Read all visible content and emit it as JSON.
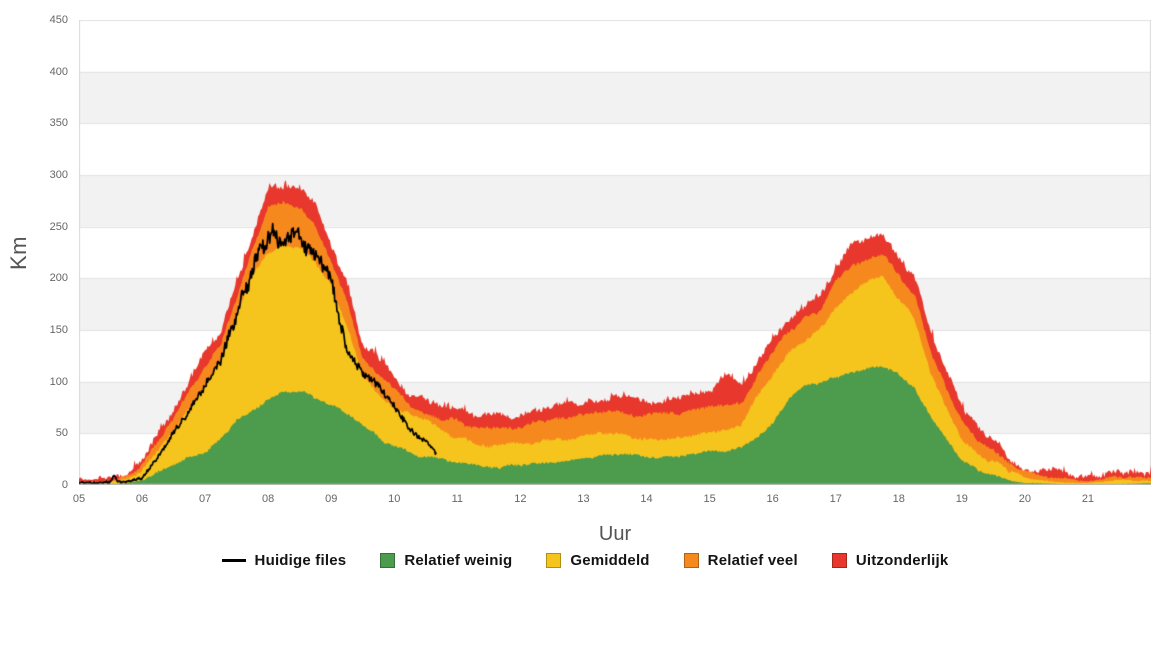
{
  "chart": {
    "ylabel": "Km",
    "xlabel": "Uur",
    "y_axis": {
      "min": 0,
      "max": 450,
      "step": 50,
      "ticks": [
        "0",
        "50",
        "100",
        "150",
        "200",
        "250",
        "300",
        "350",
        "400",
        "450"
      ]
    },
    "x_axis": {
      "start_hour": 5,
      "end_hour": 22,
      "ticks": [
        "05",
        "06",
        "07",
        "08",
        "09",
        "10",
        "11",
        "12",
        "13",
        "14",
        "15",
        "16",
        "17",
        "18",
        "19",
        "20",
        "21"
      ]
    },
    "legend": [
      {
        "label": "Huidige files",
        "type": "line",
        "color": "#000000"
      },
      {
        "label": "Relatief weinig",
        "type": "area",
        "color": "#4d9b4d"
      },
      {
        "label": "Gemiddeld",
        "type": "area",
        "color": "#f5c51d"
      },
      {
        "label": "Relatief veel",
        "type": "area",
        "color": "#f6891e"
      },
      {
        "label": "Uitzonderlijk",
        "type": "area",
        "color": "#e8372c"
      }
    ],
    "colors": {
      "plot_band": "#f2f2f2",
      "grid_line": "#e2e2e2",
      "plot_border": "#d9d9d9",
      "axis_text": "#666666"
    }
  },
  "chart_data": {
    "type": "area",
    "stacked": true,
    "title": "",
    "xlabel": "Uur",
    "ylabel": "Km",
    "ylim": [
      0,
      450
    ],
    "xlim_hours": [
      5,
      22
    ],
    "grid": "horizontal-bands",
    "legend_position": "bottom",
    "x": [
      5.0,
      5.25,
      5.5,
      5.75,
      6.0,
      6.25,
      6.5,
      6.75,
      7.0,
      7.25,
      7.5,
      7.75,
      8.0,
      8.25,
      8.5,
      8.75,
      9.0,
      9.25,
      9.5,
      9.75,
      10.0,
      10.25,
      10.5,
      10.75,
      11.0,
      11.25,
      11.5,
      11.75,
      12.0,
      12.25,
      12.5,
      12.75,
      13.0,
      13.25,
      13.5,
      13.75,
      14.0,
      14.25,
      14.5,
      14.75,
      15.0,
      15.25,
      15.5,
      15.75,
      16.0,
      16.25,
      16.5,
      16.75,
      17.0,
      17.25,
      17.5,
      17.75,
      18.0,
      18.25,
      18.5,
      18.75,
      19.0,
      19.25,
      19.5,
      19.75,
      20.0,
      20.25,
      20.5,
      20.75,
      21.0,
      21.25,
      21.5,
      21.75,
      22.0
    ],
    "series": [
      {
        "name": "Relatief weinig",
        "color": "#4d9b4d",
        "values": [
          0.5,
          0.5,
          1,
          2,
          5,
          13,
          19,
          29,
          32,
          46,
          62,
          72,
          84,
          89,
          91,
          84,
          78,
          68,
          58,
          46,
          37,
          31,
          27,
          24,
          21,
          19,
          17,
          18,
          19,
          20,
          21,
          24,
          26,
          29,
          31,
          29,
          27,
          28,
          29,
          30,
          32,
          34,
          36,
          46,
          60,
          82,
          96,
          100,
          105,
          110,
          114,
          116,
          106,
          95,
          68,
          45,
          24,
          14,
          10,
          5,
          2,
          1.5,
          1,
          0.5,
          0.5,
          0.5,
          1,
          1.5,
          2
        ]
      },
      {
        "name": "Gemiddeld",
        "color": "#f5c51d",
        "values": [
          1,
          1.5,
          2,
          3,
          9,
          21,
          34,
          48,
          63,
          73,
          101,
          133,
          143,
          143,
          139,
          129,
          114,
          87,
          49,
          42,
          39,
          37,
          36,
          31,
          24,
          22,
          20,
          20,
          20,
          21,
          21,
          20,
          20,
          19,
          19,
          18,
          18,
          17,
          17,
          18,
          19,
          19,
          20,
          39,
          46,
          44,
          44,
          50,
          67,
          78,
          83,
          84,
          73,
          65,
          41,
          31,
          22,
          16,
          12,
          8,
          5,
          3.5,
          2,
          2,
          1.5,
          2.5,
          4,
          3,
          2
        ]
      },
      {
        "name": "Relatief veel",
        "color": "#f6891e",
        "values": [
          1,
          1,
          2,
          3,
          5,
          8,
          12,
          12,
          19,
          16,
          19,
          22,
          41,
          40,
          40,
          40,
          21,
          23,
          15,
          20,
          16,
          7,
          5,
          10,
          17,
          16,
          17,
          17,
          18,
          19,
          20,
          21,
          22,
          22,
          22,
          23,
          22,
          23,
          23,
          24,
          24,
          24,
          23,
          19,
          23,
          22,
          23,
          19,
          26,
          24,
          22,
          22,
          24,
          24,
          22,
          19,
          17,
          12,
          12,
          7,
          5,
          4,
          4,
          2.5,
          1,
          3,
          3,
          3.5,
          4
        ]
      },
      {
        "name": "Uitzonderlijk",
        "color": "#e8372c",
        "values": [
          1.5,
          2,
          2.5,
          4,
          4,
          5,
          7,
          8,
          16,
          13,
          14,
          16,
          18,
          18,
          19,
          19,
          18,
          18,
          14,
          13,
          13,
          13,
          14,
          13,
          11,
          11,
          12,
          12,
          12,
          12,
          13,
          13,
          12,
          14,
          15,
          14,
          14,
          14,
          15,
          14,
          13,
          31,
          16,
          14,
          11,
          12,
          11,
          13,
          14,
          20,
          21,
          21,
          18,
          17,
          19,
          16,
          15,
          14,
          11,
          8,
          5,
          5,
          6,
          6,
          6,
          5,
          6,
          5,
          5
        ]
      }
    ],
    "line": {
      "name": "Huidige files",
      "color": "#000000",
      "x": [
        5.0,
        5.25,
        5.5,
        5.55,
        5.62,
        5.75,
        6.0,
        6.25,
        6.5,
        6.75,
        7.0,
        7.25,
        7.5,
        7.75,
        8.0,
        8.08,
        8.17,
        8.33,
        8.5,
        8.67,
        8.75,
        9.0,
        9.17,
        9.25,
        9.5,
        9.75,
        10.0,
        10.25,
        10.5,
        10.67
      ],
      "values": [
        2,
        2,
        3,
        9,
        3,
        3,
        7,
        27,
        50,
        74,
        97,
        121,
        166,
        207,
        245,
        250,
        232,
        245,
        238,
        228,
        222,
        198,
        150,
        128,
        110,
        96,
        76,
        55,
        42,
        30
      ]
    }
  }
}
